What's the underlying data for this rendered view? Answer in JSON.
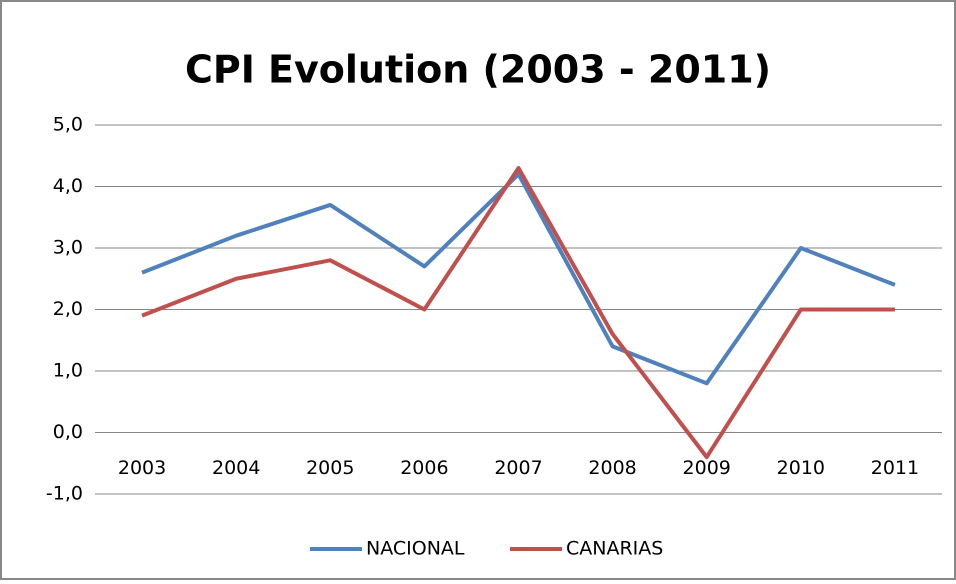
{
  "chart_data": {
    "type": "line",
    "title": "CPI Evolution (2003 - 2011)",
    "categories": [
      "2003",
      "2004",
      "2005",
      "2006",
      "2007",
      "2008",
      "2009",
      "2010",
      "2011"
    ],
    "series": [
      {
        "name": "NACIONAL",
        "color": "#4f81bd",
        "values": [
          2.6,
          3.2,
          3.7,
          2.7,
          4.2,
          1.4,
          0.8,
          3.0,
          2.4
        ]
      },
      {
        "name": "CANARIAS",
        "color": "#c0504d",
        "values": [
          1.9,
          2.5,
          2.8,
          2.0,
          4.3,
          1.6,
          -0.4,
          2.0,
          2.0
        ]
      }
    ],
    "ylim": [
      -1,
      5
    ],
    "yticks": [
      {
        "value": -1,
        "label": "-1,0"
      },
      {
        "value": 0,
        "label": "0,0"
      },
      {
        "value": 1,
        "label": "1,0"
      },
      {
        "value": 2,
        "label": "2,0"
      },
      {
        "value": 3,
        "label": "3,0"
      },
      {
        "value": 4,
        "label": "4,0"
      },
      {
        "value": 5,
        "label": "5,0"
      }
    ],
    "grid": true,
    "legend": "bottom"
  }
}
